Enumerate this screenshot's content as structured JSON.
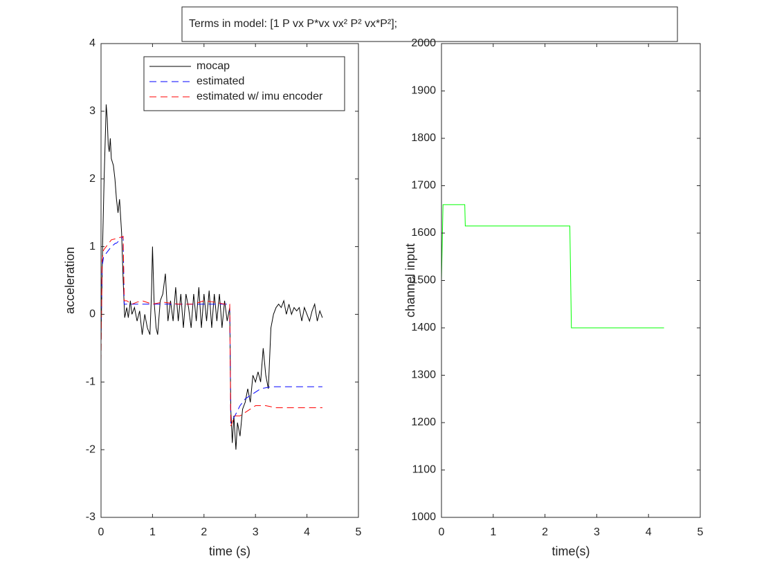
{
  "annotation": "Terms in model: [1 P vx P*vx vx² P² vx*P²];",
  "chart_data": [
    {
      "type": "line",
      "xlabel": "time (s)",
      "ylabel": "acceleration",
      "xlim": [
        0,
        5
      ],
      "xticks": [
        0,
        1,
        2,
        3,
        4,
        5
      ],
      "ylim": [
        -3,
        4
      ],
      "yticks": [
        -3,
        -2,
        -1,
        0,
        1,
        2,
        3,
        4
      ],
      "grid": false,
      "legend": "top",
      "series": [
        {
          "name": "mocap",
          "color": "#000000",
          "style": "solid",
          "x": [
            0,
            0.03,
            0.06,
            0.09,
            0.1,
            0.12,
            0.14,
            0.16,
            0.18,
            0.2,
            0.24,
            0.27,
            0.3,
            0.33,
            0.36,
            0.4,
            0.43,
            0.46,
            0.5,
            0.53,
            0.57,
            0.6,
            0.65,
            0.7,
            0.75,
            0.8,
            0.85,
            0.9,
            0.95,
            0.98,
            1.0,
            1.03,
            1.07,
            1.1,
            1.15,
            1.2,
            1.25,
            1.3,
            1.35,
            1.4,
            1.45,
            1.5,
            1.55,
            1.6,
            1.65,
            1.7,
            1.75,
            1.8,
            1.85,
            1.9,
            1.95,
            2.0,
            2.05,
            2.1,
            2.15,
            2.2,
            2.25,
            2.3,
            2.35,
            2.4,
            2.45,
            2.5,
            2.52,
            2.55,
            2.58,
            2.62,
            2.65,
            2.7,
            2.75,
            2.8,
            2.85,
            2.9,
            2.95,
            3.0,
            3.05,
            3.1,
            3.15,
            3.2,
            3.25,
            3.3,
            3.35,
            3.4,
            3.45,
            3.5,
            3.55,
            3.6,
            3.65,
            3.7,
            3.75,
            3.8,
            3.85,
            3.9,
            3.95,
            4.0,
            4.05,
            4.1,
            4.15,
            4.2,
            4.25,
            4.3
          ],
          "values": [
            -0.4,
            1.0,
            2.0,
            2.8,
            3.1,
            2.9,
            2.5,
            2.4,
            2.6,
            2.3,
            2.2,
            2.0,
            1.7,
            1.5,
            1.7,
            1.2,
            0.5,
            -0.05,
            0.1,
            -0.05,
            0.2,
            0,
            0.1,
            -0.1,
            0.05,
            -0.3,
            0,
            -0.2,
            -0.3,
            0.3,
            1.0,
            0.2,
            -0.2,
            -0.3,
            0.2,
            0.3,
            0.6,
            -0.1,
            0.2,
            -0.1,
            0.4,
            -0.1,
            0.3,
            -0.2,
            0.3,
            0.1,
            -0.2,
            0.3,
            -0.1,
            0.4,
            -0.2,
            0.3,
            -0.1,
            0.35,
            -0.2,
            0.3,
            -0.1,
            0.3,
            -0.2,
            0.2,
            -0.1,
            0.1,
            -1.4,
            -1.9,
            -1.5,
            -2.0,
            -1.6,
            -1.8,
            -1.4,
            -1.3,
            -1.1,
            -1.3,
            -0.9,
            -1.0,
            -0.85,
            -1.0,
            -0.5,
            -0.9,
            -1.1,
            -0.2,
            0,
            0.1,
            0.15,
            0.1,
            0.2,
            0,
            0.15,
            0,
            0.1,
            0.05,
            0.1,
            -0.1,
            0.1,
            0,
            -0.1,
            0.05,
            0.15,
            -0.1,
            0.05,
            -0.05
          ]
        },
        {
          "name": "estimated",
          "color": "#0000ff",
          "style": "dashed",
          "x": [
            0,
            0.02,
            0.05,
            0.1,
            0.15,
            0.2,
            0.28,
            0.3,
            0.43,
            0.45,
            0.5,
            1.0,
            1.5,
            2.0,
            2.5,
            2.52,
            2.6,
            2.7,
            2.8,
            2.9,
            3.0,
            3.1,
            3.3,
            4.3
          ],
          "values": [
            -0.4,
            0.7,
            0.85,
            0.9,
            0.95,
            1.0,
            1.05,
            1.05,
            1.15,
            0.15,
            0.15,
            0.15,
            0.15,
            0.15,
            0.15,
            -1.6,
            -1.5,
            -1.35,
            -1.25,
            -1.2,
            -1.15,
            -1.1,
            -1.07,
            -1.07
          ]
        },
        {
          "name": "estimated w/ imu encoder",
          "color": "#ff0000",
          "style": "dashed",
          "x": [
            0,
            0.02,
            0.05,
            0.1,
            0.2,
            0.3,
            0.43,
            0.45,
            0.5,
            0.6,
            0.7,
            0.8,
            1.0,
            1.2,
            1.5,
            1.8,
            2.0,
            2.2,
            2.4,
            2.5,
            2.52,
            2.6,
            2.7,
            2.8,
            2.9,
            3.0,
            3.2,
            3.4,
            3.6,
            4.3
          ],
          "values": [
            -0.7,
            0.8,
            0.95,
            1.0,
            1.1,
            1.12,
            1.15,
            0.2,
            0.2,
            0.15,
            0.18,
            0.2,
            0.15,
            0.18,
            0.15,
            0.15,
            0.2,
            0.18,
            0.15,
            0.15,
            -1.65,
            -1.5,
            -1.5,
            -1.45,
            -1.4,
            -1.35,
            -1.35,
            -1.38,
            -1.38,
            -1.38
          ]
        }
      ]
    },
    {
      "type": "line",
      "xlabel": "time(s)",
      "ylabel": "channel input",
      "xlim": [
        0,
        5
      ],
      "xticks": [
        0,
        1,
        2,
        3,
        4,
        5
      ],
      "ylim": [
        1000,
        2000
      ],
      "yticks": [
        1000,
        1100,
        1200,
        1300,
        1400,
        1500,
        1600,
        1700,
        1800,
        1900,
        2000
      ],
      "grid": false,
      "series": [
        {
          "color": "#00ff00",
          "style": "solid",
          "x": [
            0,
            0.03,
            0.45,
            0.46,
            2.48,
            2.51,
            4.3
          ],
          "values": [
            1500,
            1660,
            1660,
            1615,
            1615,
            1400,
            1400
          ]
        }
      ]
    }
  ]
}
